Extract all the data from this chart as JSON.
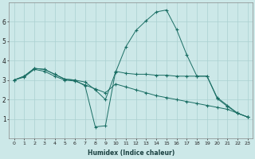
{
  "xlabel": "Humidex (Indice chaleur)",
  "bg_color": "#cce8e8",
  "grid_color": "#aad0d0",
  "line_color": "#1a6e64",
  "xlim": [
    -0.5,
    23.5
  ],
  "ylim": [
    0.0,
    7.0
  ],
  "yticks": [
    1,
    2,
    3,
    4,
    5,
    6
  ],
  "xticks": [
    0,
    1,
    2,
    3,
    4,
    5,
    6,
    7,
    8,
    9,
    10,
    11,
    12,
    13,
    14,
    15,
    16,
    17,
    18,
    19,
    20,
    21,
    22,
    23
  ],
  "series1_x": [
    0,
    1,
    2,
    3,
    4,
    5,
    6,
    7,
    8,
    9,
    10,
    11,
    12,
    13,
    14,
    15,
    16,
    17,
    18,
    19,
    20,
    21,
    22,
    23
  ],
  "series1_y": [
    3.0,
    3.2,
    3.6,
    3.55,
    3.3,
    3.05,
    3.0,
    2.7,
    0.6,
    0.65,
    3.45,
    3.35,
    3.3,
    3.3,
    3.25,
    3.25,
    3.2,
    3.2,
    3.2,
    3.2,
    2.1,
    1.7,
    1.3,
    1.1
  ],
  "series2_x": [
    0,
    1,
    2,
    3,
    4,
    5,
    6,
    7,
    8,
    9,
    10,
    11,
    12,
    13,
    14,
    15,
    16,
    17,
    18,
    19,
    20,
    21,
    22,
    23
  ],
  "series2_y": [
    3.0,
    3.15,
    3.55,
    3.45,
    3.2,
    3.0,
    2.95,
    2.75,
    2.55,
    2.35,
    2.8,
    2.65,
    2.5,
    2.35,
    2.2,
    2.1,
    2.0,
    1.9,
    1.8,
    1.7,
    1.6,
    1.5,
    1.3,
    1.1
  ],
  "series3_x": [
    0,
    1,
    2,
    3,
    4,
    5,
    6,
    7,
    8,
    9,
    10,
    11,
    12,
    13,
    14,
    15,
    16,
    17,
    18,
    19,
    20,
    21,
    22,
    23
  ],
  "series3_y": [
    3.0,
    3.15,
    3.55,
    3.45,
    3.2,
    3.0,
    2.95,
    2.75,
    2.55,
    2.35,
    2.8,
    2.65,
    2.5,
    2.35,
    2.2,
    2.1,
    2.0,
    1.9,
    1.8,
    1.7,
    1.6,
    1.5,
    1.3,
    1.1
  ],
  "series4_x": [
    0,
    1,
    2,
    3,
    4,
    5,
    6,
    7,
    8,
    9,
    10,
    11,
    12,
    13,
    14,
    15,
    16,
    17,
    18,
    19,
    20,
    21,
    22,
    23
  ],
  "series4_y": [
    3.0,
    3.2,
    3.6,
    3.55,
    3.3,
    3.05,
    3.0,
    2.9,
    2.5,
    2.0,
    3.4,
    4.7,
    5.55,
    6.05,
    6.5,
    6.6,
    5.6,
    4.3,
    3.2,
    3.2,
    2.05,
    1.65,
    1.3,
    1.1
  ]
}
